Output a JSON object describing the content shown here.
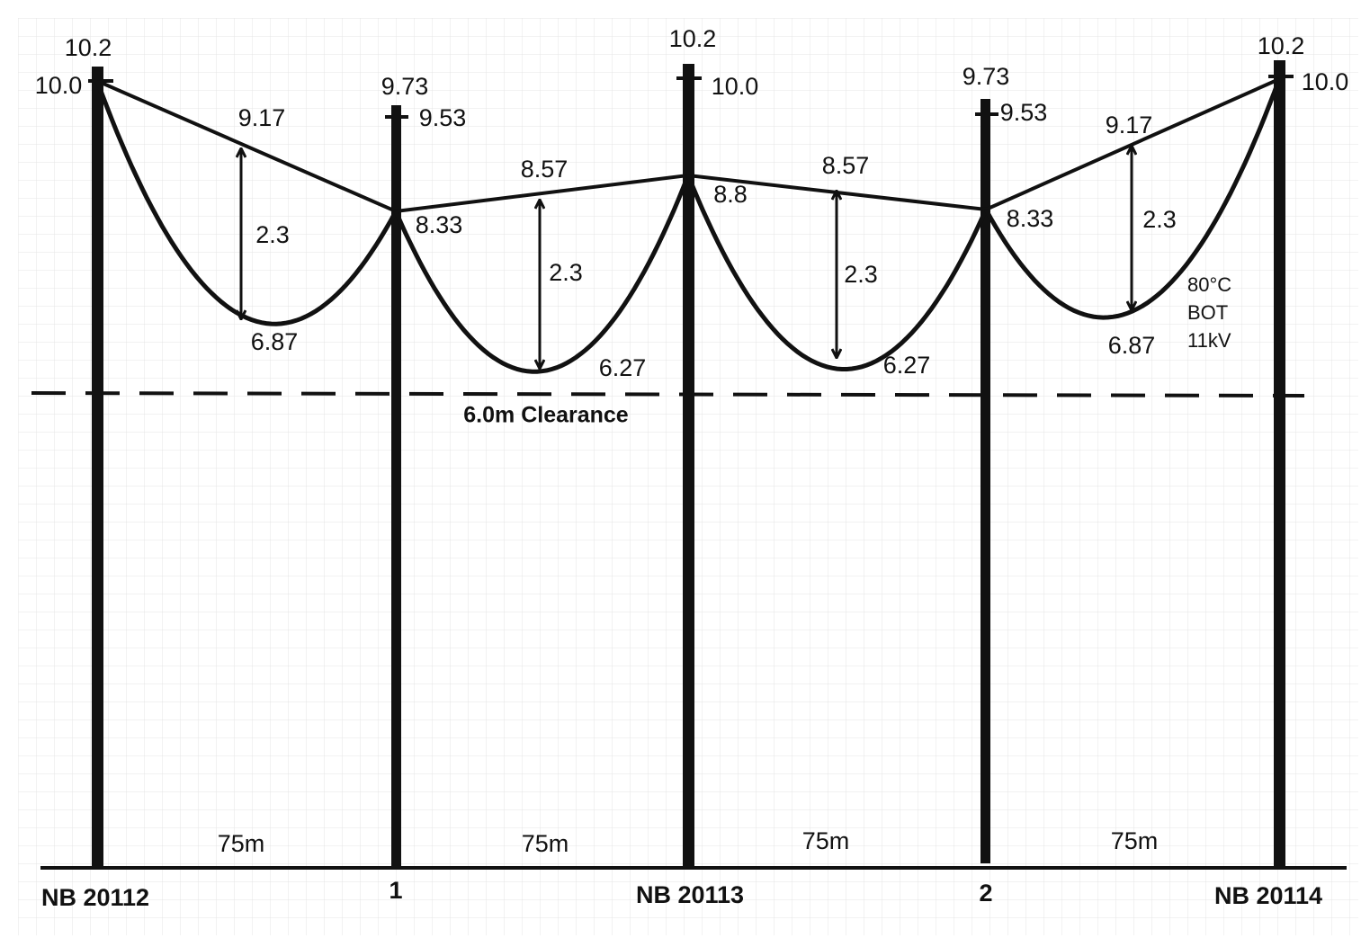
{
  "poles": [
    {
      "name": "NB 20112",
      "top": "10.2",
      "attach": "10.0"
    },
    {
      "name": "1",
      "top": "9.73",
      "attach": "9.53",
      "conductor": "8.33"
    },
    {
      "name": "NB 20113",
      "top": "10.2",
      "attach": "10.0",
      "conductor": "8.8"
    },
    {
      "name": "2",
      "top": "9.73",
      "attach": "9.53",
      "conductor": "8.33"
    },
    {
      "name": "NB 20114",
      "top": "10.2",
      "attach": "10.0"
    }
  ],
  "spans": [
    {
      "length": "75m",
      "chord_mid": "9.17",
      "sag": "2.3",
      "low": "6.87"
    },
    {
      "length": "75m",
      "chord_mid": "8.57",
      "sag": "2.3",
      "low": "6.27"
    },
    {
      "length": "75m",
      "chord_mid": "8.57",
      "sag": "2.3",
      "low": "6.27"
    },
    {
      "length": "75m",
      "chord_mid": "9.17",
      "sag": "2.3",
      "low": "6.87"
    }
  ],
  "clearance": "6.0m Clearance",
  "note": [
    "80°C",
    "BOT",
    "11kV"
  ]
}
